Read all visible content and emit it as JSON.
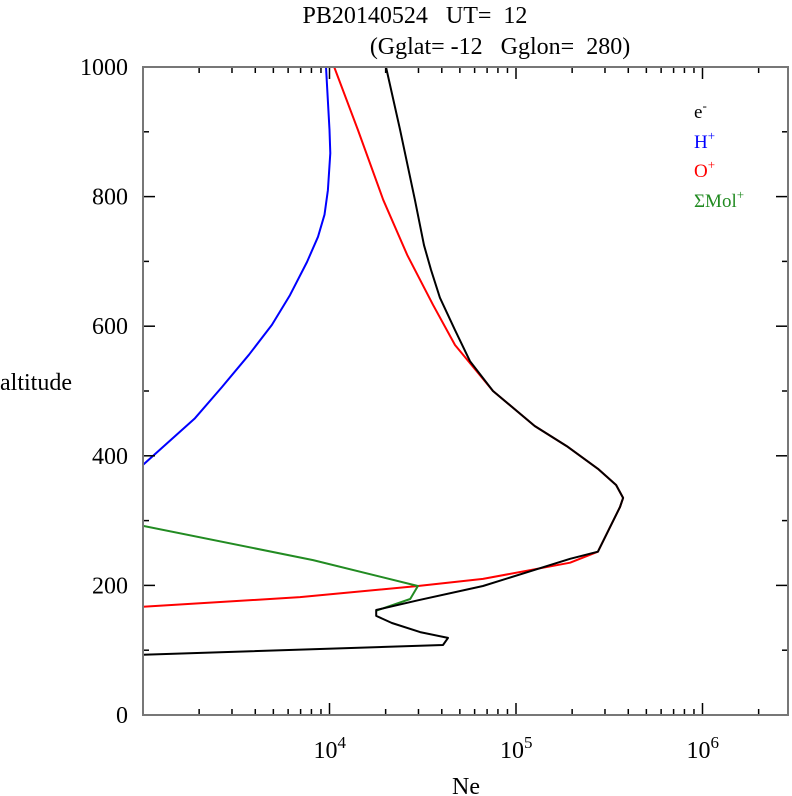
{
  "chart_data": {
    "type": "line",
    "title": "PB20140524   UT=  12",
    "subtitle": "(Gglat= -12   Gglon=  280)",
    "xlabel": "Ne",
    "ylabel": "altitude",
    "xscale": "log",
    "xlim": [
      1000,
      2800000
    ],
    "ylim": [
      0,
      1000
    ],
    "x_ticks": [
      {
        "value": 10000,
        "base": "10",
        "exp": "4"
      },
      {
        "value": 100000,
        "base": "10",
        "exp": "5"
      },
      {
        "value": 1000000,
        "base": "10",
        "exp": "6"
      }
    ],
    "y_ticks": [
      {
        "value": 0,
        "label": "0"
      },
      {
        "value": 200,
        "label": "200"
      },
      {
        "value": 400,
        "label": "400"
      },
      {
        "value": 600,
        "label": "600"
      },
      {
        "value": 800,
        "label": "800"
      },
      {
        "value": 1000,
        "label": "1000"
      }
    ],
    "y_minor_step": 100,
    "grid": false,
    "legend_position": "top-right",
    "series": [
      {
        "name": "e-",
        "label": "e",
        "sup": "-",
        "color": "#000000",
        "points": [
          [
            1000,
            93
          ],
          [
            40600,
            108
          ],
          [
            43200,
            119
          ],
          [
            30600,
            128
          ],
          [
            21600,
            142
          ],
          [
            17800,
            153
          ],
          [
            17800,
            162
          ],
          [
            29800,
            177
          ],
          [
            66500,
            199
          ],
          [
            195000,
            241
          ],
          [
            275000,
            252
          ],
          [
            361000,
            321
          ],
          [
            375000,
            335
          ],
          [
            344000,
            355
          ],
          [
            275000,
            380
          ],
          [
            187000,
            415
          ],
          [
            126000,
            446
          ],
          [
            75300,
            500
          ],
          [
            56700,
            546
          ],
          [
            47100,
            594
          ],
          [
            39100,
            644
          ],
          [
            35000,
            687
          ],
          [
            32100,
            725
          ],
          [
            28700,
            795
          ],
          [
            23900,
            903
          ],
          [
            20100,
            1000
          ]
        ]
      },
      {
        "name": "H+",
        "label": "H",
        "sup": "+",
        "color": "#0000ff",
        "points": [
          [
            1000,
            386
          ],
          [
            1900,
            458
          ],
          [
            2650,
            506
          ],
          [
            3700,
            556
          ],
          [
            4910,
            602
          ],
          [
            6140,
            648
          ],
          [
            7570,
            699
          ],
          [
            8680,
            738
          ],
          [
            9400,
            772
          ],
          [
            9800,
            810
          ],
          [
            10100,
            867
          ],
          [
            10000,
            903
          ],
          [
            9580,
            1000
          ]
        ]
      },
      {
        "name": "O+",
        "label": "O",
        "sup": "+",
        "color": "#ff0000",
        "points": [
          [
            1000,
            167
          ],
          [
            6950,
            182
          ],
          [
            29800,
            199
          ],
          [
            66500,
            210
          ],
          [
            195000,
            235
          ],
          [
            275000,
            252
          ],
          [
            361000,
            321
          ],
          [
            375000,
            335
          ],
          [
            344000,
            355
          ],
          [
            275000,
            380
          ],
          [
            187000,
            415
          ],
          [
            126000,
            446
          ],
          [
            75300,
            500
          ],
          [
            47100,
            571
          ],
          [
            35900,
            633
          ],
          [
            26100,
            710
          ],
          [
            19400,
            795
          ],
          [
            14200,
            903
          ],
          [
            10600,
            1000
          ]
        ]
      },
      {
        "name": "ΣMol+",
        "label": "ΣMol",
        "sup": "+",
        "color": "#228b22",
        "points": [
          [
            1000,
            292
          ],
          [
            8170,
            239
          ],
          [
            29800,
            199
          ],
          [
            27100,
            179
          ],
          [
            17800,
            161
          ]
        ]
      }
    ]
  }
}
